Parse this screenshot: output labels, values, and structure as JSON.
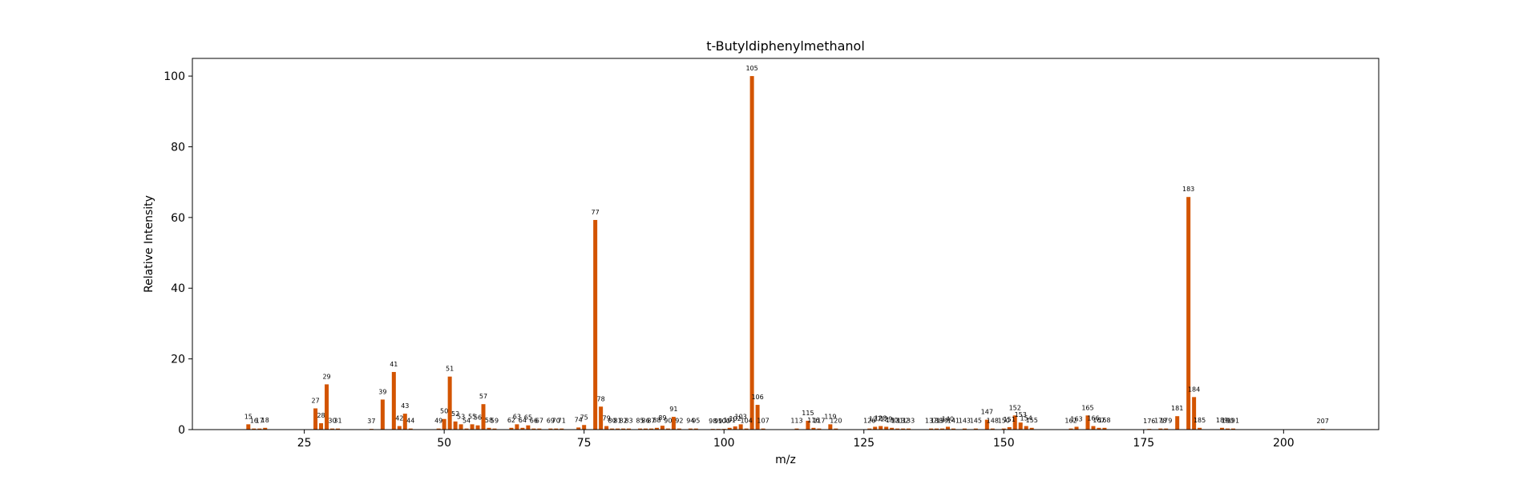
{
  "chart_data": {
    "type": "bar",
    "title": "t-Butyldiphenylmethanol",
    "xlabel": "m/z",
    "ylabel": "Relative Intensity",
    "xlim": [
      5,
      217
    ],
    "ylim": [
      0,
      105
    ],
    "xticks": [
      25,
      50,
      75,
      100,
      125,
      150,
      175,
      200
    ],
    "yticks": [
      0,
      20,
      40,
      60,
      80,
      100
    ],
    "bar_color": "#d35400",
    "grid": false,
    "legend": "none",
    "x": [
      15,
      16,
      17,
      18,
      27,
      28,
      29,
      30,
      31,
      37,
      39,
      41,
      42,
      43,
      44,
      49,
      50,
      51,
      52,
      53,
      54,
      55,
      56,
      57,
      58,
      59,
      62,
      63,
      64,
      65,
      66,
      67,
      69,
      70,
      71,
      74,
      75,
      77,
      78,
      79,
      80,
      81,
      82,
      83,
      85,
      86,
      87,
      88,
      89,
      90,
      91,
      92,
      94,
      95,
      98,
      99,
      100,
      101,
      102,
      103,
      104,
      105,
      106,
      107,
      113,
      115,
      116,
      117,
      119,
      120,
      126,
      127,
      128,
      129,
      130,
      131,
      132,
      133,
      137,
      138,
      139,
      140,
      141,
      143,
      145,
      147,
      148,
      150,
      151,
      152,
      153,
      154,
      155,
      162,
      163,
      165,
      166,
      167,
      168,
      176,
      178,
      179,
      181,
      183,
      184,
      185,
      189,
      190,
      191,
      207
    ],
    "values": [
      1.5,
      0.3,
      0.3,
      0.5,
      6,
      1.8,
      12.8,
      0.3,
      0.3,
      0.2,
      8.5,
      16.3,
      1,
      4.5,
      0.3,
      0.3,
      3,
      15,
      2.3,
      1.5,
      0.3,
      1.5,
      1.2,
      7.2,
      0.5,
      0.3,
      0.5,
      1.5,
      0.5,
      1.2,
      0.3,
      0.3,
      0.3,
      0.3,
      0.3,
      0.6,
      1.3,
      59.3,
      6.5,
      1,
      0.3,
      0.3,
      0.3,
      0.3,
      0.3,
      0.3,
      0.3,
      0.5,
      1.1,
      0.3,
      3.6,
      0.3,
      0.3,
      0.3,
      0.2,
      0.2,
      0.2,
      0.5,
      0.9,
      1.5,
      0.3,
      100,
      7,
      0.3,
      0.3,
      2.5,
      0.5,
      0.3,
      1.5,
      0.3,
      0.3,
      0.8,
      1,
      0.8,
      0.5,
      0.3,
      0.3,
      0.3,
      0.3,
      0.3,
      0.3,
      0.8,
      0.3,
      0.3,
      0.3,
      2.8,
      0.3,
      0.3,
      0.7,
      4,
      2,
      1,
      0.5,
      0.3,
      0.8,
      4,
      1,
      0.5,
      0.5,
      0.2,
      0.3,
      0.3,
      3.8,
      65.8,
      9.2,
      0.5,
      0.5,
      0.3,
      0.3,
      0.2
    ]
  }
}
